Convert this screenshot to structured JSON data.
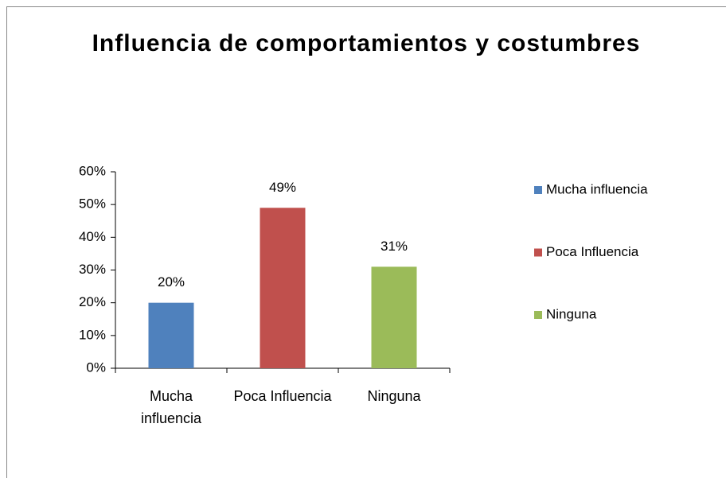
{
  "chart_data": {
    "type": "bar",
    "title": "Influencia de comportamientos y costumbres",
    "categories": [
      "Mucha influencia",
      "Poca Influencia",
      "Ninguna"
    ],
    "values": [
      20,
      49,
      31
    ],
    "value_labels": [
      "20%",
      "49%",
      "31%"
    ],
    "colors": [
      "#4f81bd",
      "#c0504d",
      "#9bbb59"
    ],
    "ylim": [
      0,
      60
    ],
    "yticks": [
      {
        "value": 0,
        "label": "0%"
      },
      {
        "value": 10,
        "label": "10%"
      },
      {
        "value": 20,
        "label": "20%"
      },
      {
        "value": 30,
        "label": "30%"
      },
      {
        "value": 40,
        "label": "40%"
      },
      {
        "value": 50,
        "label": "50%"
      },
      {
        "value": 60,
        "label": "60%"
      }
    ],
    "legend": "right",
    "grid": false
  }
}
